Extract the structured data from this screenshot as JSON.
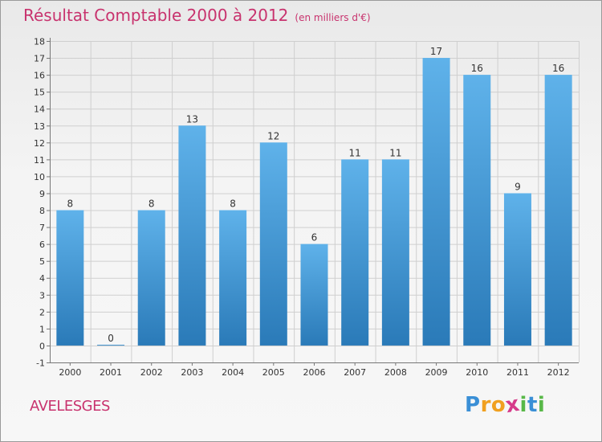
{
  "title": "Résultat Comptable 2000 à 2012",
  "subtitle": "(en milliers d'€)",
  "commune": "AVELESGES",
  "logo": {
    "letters": [
      "P",
      "r",
      "o",
      "x",
      "i",
      "t",
      "i"
    ],
    "colors": [
      "#3a8fd6",
      "#f0a020",
      "#f0a020",
      "#d63a8a",
      "#58b848",
      "#3a8fd6",
      "#58b848"
    ]
  },
  "colors": {
    "title": "#c8336e",
    "bar_top": "#5fb2ea",
    "bar_bottom": "#2a7ab8",
    "grid": "#cfcfcf",
    "axis": "#777777"
  },
  "chart_data": {
    "type": "bar",
    "title": "Résultat Comptable 2000 à 2012",
    "xlabel": "",
    "ylabel": "",
    "categories": [
      "2000",
      "2001",
      "2002",
      "2003",
      "2004",
      "2005",
      "2006",
      "2007",
      "2008",
      "2009",
      "2010",
      "2011",
      "2012"
    ],
    "values": [
      8,
      0,
      8,
      13,
      8,
      12,
      6,
      11,
      11,
      17,
      16,
      9,
      16
    ],
    "ylim": [
      -1,
      18
    ],
    "yticks": [
      -1,
      0,
      1,
      2,
      3,
      4,
      5,
      6,
      7,
      8,
      9,
      10,
      11,
      12,
      13,
      14,
      15,
      16,
      17,
      18
    ],
    "grid": true
  }
}
